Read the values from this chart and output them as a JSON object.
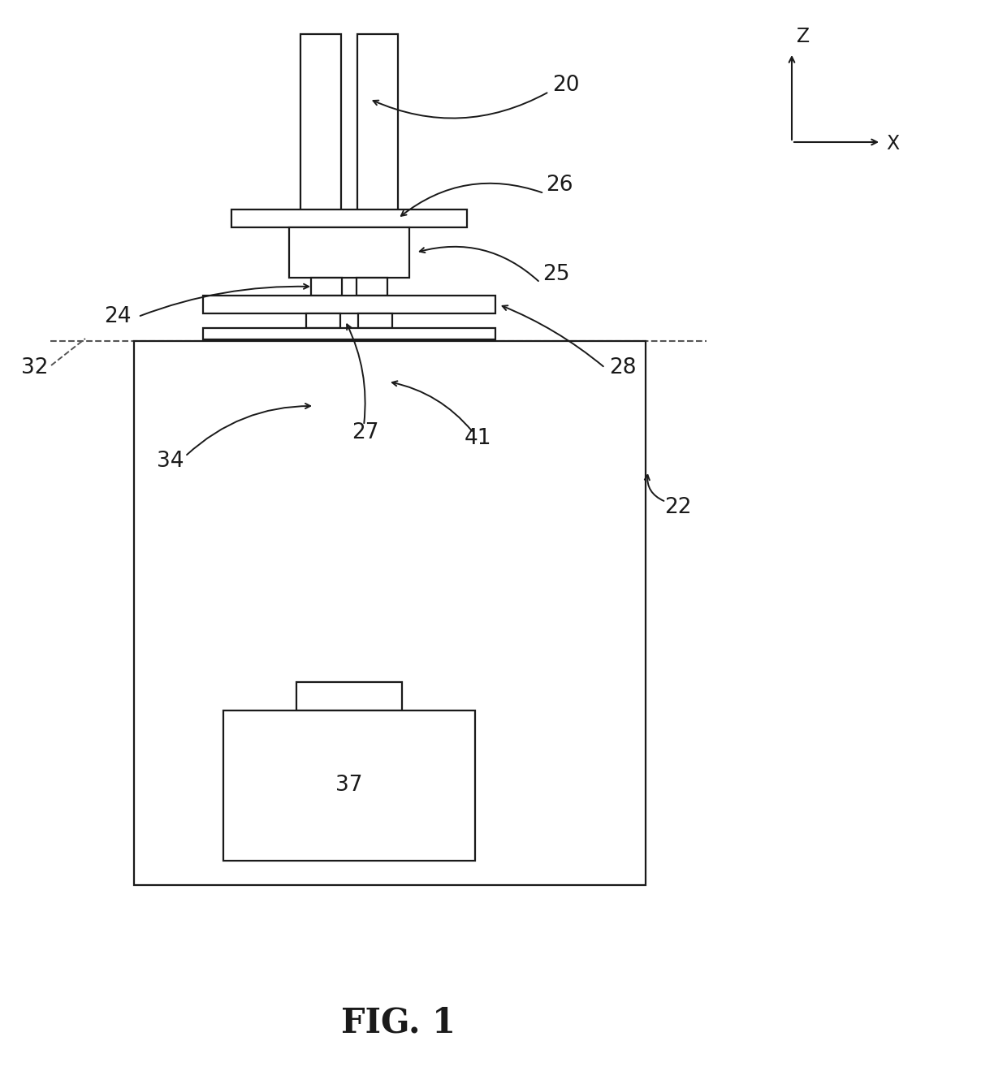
{
  "bg_color": "#ffffff",
  "line_color": "#1a1a1a",
  "fig_label": "FIG. 1",
  "lw": 1.6
}
